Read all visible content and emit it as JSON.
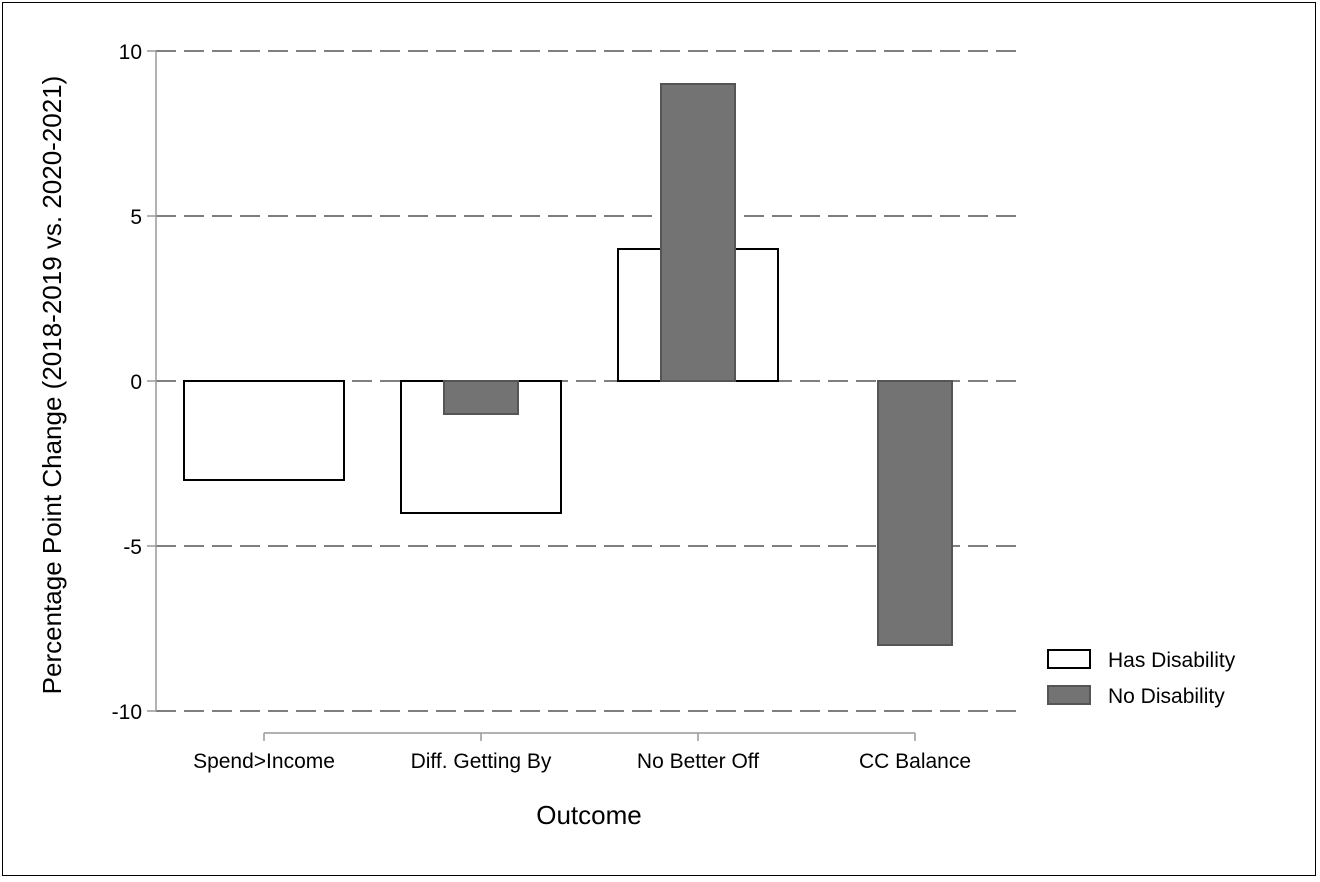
{
  "chart_data": {
    "type": "bar",
    "title": "",
    "xlabel": "Outcome",
    "ylabel": "Percentage Point Change (2018-2019 vs. 2020-2021)",
    "categories": [
      "Spend>Income",
      "Diff. Getting By",
      "No Better Off",
      "CC Balance"
    ],
    "series": [
      {
        "name": "Has Disability",
        "values": [
          -3,
          -4,
          4,
          0
        ],
        "color": "#ffffff"
      },
      {
        "name": "No Disability",
        "values": [
          0,
          -1,
          9,
          -8
        ],
        "color": "#737373"
      }
    ],
    "ylim": [
      -10,
      10
    ],
    "yticks": [
      10,
      5,
      0,
      -5,
      -10
    ],
    "ytick_labels": [
      "10",
      "5",
      "0",
      "-5",
      "-10"
    ],
    "grid": true,
    "legend_position": "right"
  }
}
